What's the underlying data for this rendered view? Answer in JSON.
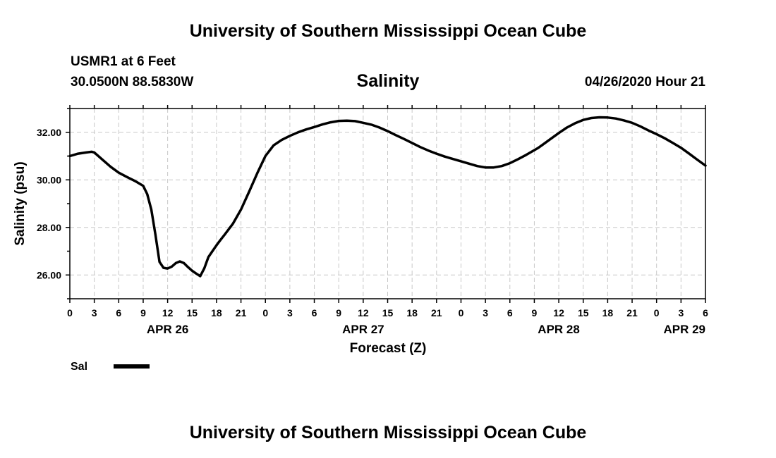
{
  "header": {
    "title": "University of Southern Mississippi Ocean Cube",
    "station": "USMR1 at 6 Feet",
    "coordinates": "30.0500N 88.5830W",
    "chart_title": "Salinity",
    "date": "04/26/2020 Hour 21"
  },
  "footer": {
    "title": "University of Southern Mississippi Ocean Cube"
  },
  "chart_data": {
    "type": "line",
    "title": "Salinity",
    "xlabel": "Forecast (Z)",
    "ylabel": "Salinity (psu)",
    "xlim": [
      0,
      78
    ],
    "ylim": [
      25.0,
      33.0
    ],
    "grid": true,
    "y_ticks": [
      26.0,
      28.0,
      30.0,
      32.0
    ],
    "y_tick_labels": [
      "26.00",
      "28.00",
      "30.00",
      "32.00"
    ],
    "x_ticks": [
      0,
      3,
      6,
      9,
      12,
      15,
      18,
      21,
      24,
      27,
      30,
      33,
      36,
      39,
      42,
      45,
      48,
      51,
      54,
      57,
      60,
      63,
      66,
      69,
      72,
      75,
      78
    ],
    "x_tick_labels": [
      "0",
      "3",
      "6",
      "9",
      "12",
      "15",
      "18",
      "21",
      "0",
      "3",
      "6",
      "9",
      "12",
      "15",
      "18",
      "21",
      "0",
      "3",
      "6",
      "9",
      "12",
      "15",
      "18",
      "21",
      "0",
      "3",
      "6"
    ],
    "date_labels": [
      {
        "text": "APR 26",
        "x": 12
      },
      {
        "text": "APR 27",
        "x": 36
      },
      {
        "text": "APR 28",
        "x": 60
      },
      {
        "text": "APR 29",
        "x": 78
      }
    ],
    "legend": {
      "position": "bottom-left",
      "entries": [
        {
          "name": "Sal",
          "color": "#000000"
        }
      ]
    },
    "series": [
      {
        "name": "Sal",
        "color": "#000000",
        "x": [
          0,
          1,
          2,
          2.7,
          3,
          4,
          5,
          6,
          7,
          8,
          9,
          9.5,
          10,
          10.5,
          11,
          11.5,
          12,
          12.5,
          13,
          13.5,
          14,
          14.5,
          15,
          15.5,
          16,
          16.5,
          17,
          17.5,
          18,
          18.5,
          19,
          20,
          21,
          22,
          23,
          24,
          25,
          26,
          27,
          28,
          29,
          30,
          31,
          32,
          33,
          34,
          35,
          36,
          37,
          38,
          39,
          40,
          41,
          42,
          43,
          44,
          45,
          46,
          47,
          48,
          49,
          50,
          51,
          52,
          53,
          54,
          55,
          56,
          57,
          57.5,
          58,
          59,
          60,
          61,
          62,
          63,
          64,
          65,
          66,
          67,
          68,
          69,
          70,
          71,
          72,
          73,
          74,
          75,
          76,
          77,
          78
        ],
        "values": [
          31.0,
          31.1,
          31.15,
          31.18,
          31.15,
          30.85,
          30.55,
          30.3,
          30.12,
          29.95,
          29.75,
          29.4,
          28.75,
          27.7,
          26.55,
          26.3,
          26.27,
          26.35,
          26.5,
          26.57,
          26.5,
          26.33,
          26.18,
          26.06,
          25.95,
          26.28,
          26.75,
          27.0,
          27.25,
          27.48,
          27.7,
          28.15,
          28.75,
          29.5,
          30.28,
          31.0,
          31.45,
          31.68,
          31.85,
          32.0,
          32.12,
          32.22,
          32.33,
          32.42,
          32.48,
          32.49,
          32.47,
          32.4,
          32.32,
          32.2,
          32.05,
          31.88,
          31.72,
          31.55,
          31.38,
          31.23,
          31.1,
          30.98,
          30.88,
          30.78,
          30.68,
          30.58,
          30.52,
          30.52,
          30.58,
          30.7,
          30.87,
          31.05,
          31.25,
          31.35,
          31.47,
          31.72,
          31.97,
          32.2,
          32.38,
          32.52,
          32.6,
          32.63,
          32.62,
          32.58,
          32.5,
          32.4,
          32.25,
          32.08,
          31.92,
          31.75,
          31.55,
          31.35,
          31.1,
          30.85,
          30.6
        ]
      }
    ]
  }
}
